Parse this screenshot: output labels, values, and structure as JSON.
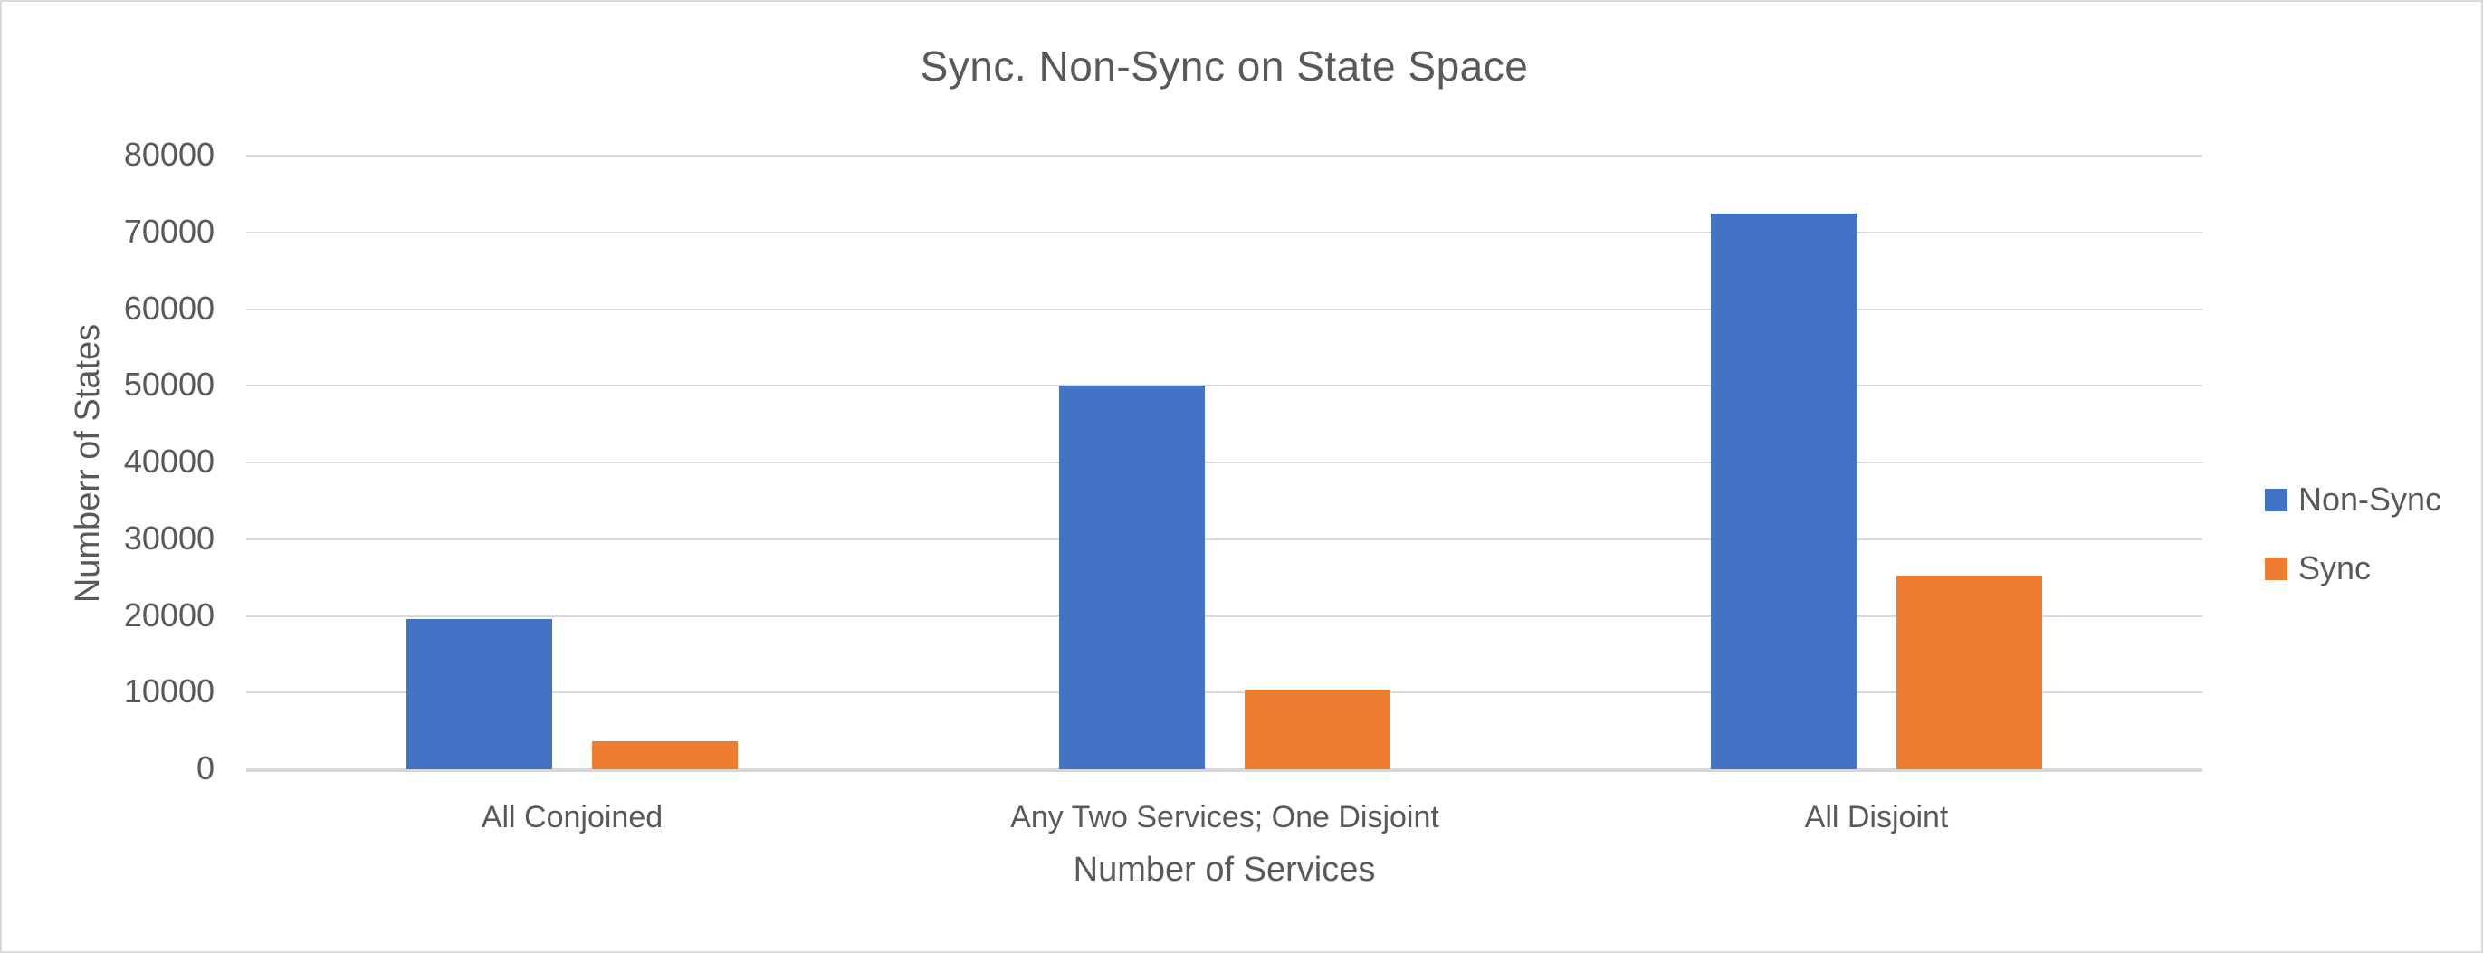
{
  "chart_data": {
    "type": "bar",
    "title": "Sync. Non-Sync on State Space",
    "xlabel": "Number of Services",
    "ylabel": "Numberr of States",
    "categories": [
      "All Conjoined",
      "Any Two Services; One Disjoint",
      "All Disjoint"
    ],
    "series": [
      {
        "name": "Non-Sync",
        "color": "#4472C4",
        "values": [
          19600,
          50000,
          72400
        ]
      },
      {
        "name": "Sync",
        "color": "#ED7D31",
        "values": [
          3700,
          10400,
          25300
        ]
      }
    ],
    "ylim": [
      0,
      80000
    ],
    "ytick_step": 10000,
    "ytick_labels": [
      "0",
      "10000",
      "20000",
      "30000",
      "40000",
      "50000",
      "60000",
      "70000",
      "80000"
    ],
    "grid": "horizontal-on",
    "legend_position": "right",
    "colors": {
      "text": "#595959",
      "gridline": "#D9D9D9",
      "background": "#FFFFFF",
      "border": "#D9D9D9"
    }
  }
}
